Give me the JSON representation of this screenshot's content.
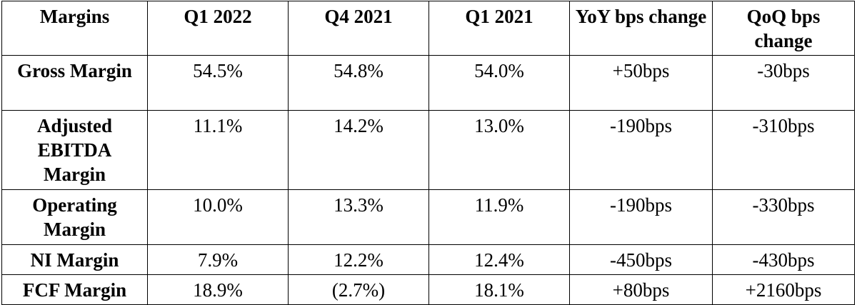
{
  "table": {
    "headers": [
      "Margins",
      "Q1 2022",
      "Q4 2021",
      "Q1 2021",
      "YoY bps change",
      "QoQ bps change"
    ],
    "rows": [
      {
        "label": "Gross Margin",
        "values": [
          "54.5%",
          "54.8%",
          "54.0%",
          "+50bps",
          "-30bps"
        ]
      },
      {
        "label": "Adjusted EBITDA Margin",
        "values": [
          "11.1%",
          "14.2%",
          "13.0%",
          "-190bps",
          "-310bps"
        ]
      },
      {
        "label": "Operating Margin",
        "values": [
          "10.0%",
          "13.3%",
          "11.9%",
          "-190bps",
          "-330bps"
        ]
      },
      {
        "label": "NI Margin",
        "values": [
          "7.9%",
          "12.2%",
          "12.4%",
          "-450bps",
          "-430bps"
        ]
      },
      {
        "label": "FCF Margin",
        "values": [
          "18.9%",
          "(2.7%)",
          "18.1%",
          "+80bps",
          "+2160bps"
        ]
      }
    ]
  }
}
